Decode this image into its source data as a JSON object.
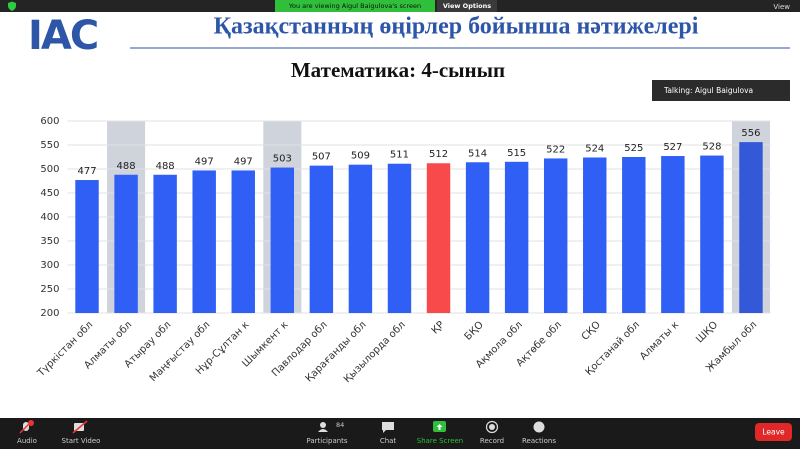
{
  "zoom": {
    "banner": "You are viewing Aigul Baigulova's screen",
    "view_options": "View Options",
    "view": "View",
    "talking": "Talking: Aigul Baigulova",
    "toolbar": {
      "audio": "Audio",
      "start_video": "Start Video",
      "participants": "Participants",
      "participant_count": 84,
      "chat": "Chat",
      "share_screen": "Share Screen",
      "record": "Record",
      "reactions": "Reactions",
      "leave": "Leave"
    }
  },
  "slide": {
    "logo": "IAC",
    "title": "Қазақстанның өңірлер бойынша нәтижелері"
  },
  "chart_data": {
    "type": "bar",
    "title": "Математика: 4-сынып",
    "categories": [
      "Түркістан обл",
      "Алматы обл",
      "Атырау обл",
      "Маңғыстау обл",
      "Нұр-Сұлтан к",
      "Шымкент к",
      "Павлодар обл",
      "Қарағанды обл",
      "Қызылорда обл",
      "ҚР",
      "БҚО",
      "Ақмола обл",
      "Ақтөбе обл",
      "СҚО",
      "Қостанай обл",
      "Алматы к",
      "ШҚО",
      "Жамбыл обл"
    ],
    "values": [
      477,
      488,
      488,
      497,
      497,
      503,
      507,
      509,
      511,
      512,
      514,
      515,
      522,
      524,
      525,
      527,
      528,
      556
    ],
    "colors": [
      "#2f5ff4",
      "#2f5ff4",
      "#2f5ff4",
      "#2f5ff4",
      "#2f5ff4",
      "#2f5ff4",
      "#2f5ff4",
      "#2f5ff4",
      "#2f5ff4",
      "#f84a4a",
      "#2f5ff4",
      "#2f5ff4",
      "#2f5ff4",
      "#2f5ff4",
      "#2f5ff4",
      "#2f5ff4",
      "#2f5ff4",
      "#3358d8"
    ],
    "highlighted": [
      false,
      true,
      false,
      false,
      false,
      true,
      false,
      false,
      false,
      false,
      false,
      false,
      false,
      false,
      false,
      false,
      false,
      true
    ],
    "highlight_color": "#cfd3dc",
    "ylim": [
      200,
      600
    ],
    "yticks": [
      200,
      250,
      300,
      350,
      400,
      450,
      500,
      550,
      600
    ],
    "grid": true
  }
}
